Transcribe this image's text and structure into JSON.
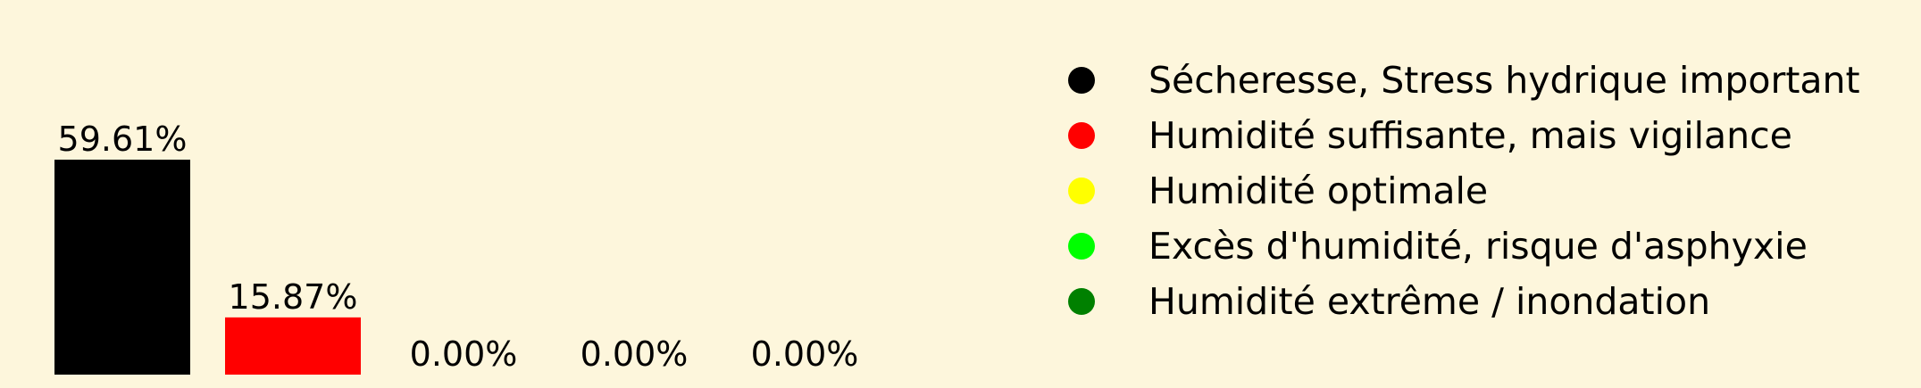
{
  "chart_data": {
    "type": "bar",
    "categories": [
      "Sécheresse, Stress hydrique important",
      "Humidité suffisante, mais vigilance",
      "Humidité optimale",
      "Excès d'humidité, risque d'asphyxie",
      "Humidité extrême / inondation"
    ],
    "values": [
      59.61,
      15.87,
      0.0,
      0.0,
      0.0
    ],
    "value_labels": [
      "59.61%",
      "15.87%",
      "0.00%",
      "0.00%",
      "0.00%"
    ],
    "colors": [
      "#000000",
      "#ff0000",
      "#ffff00",
      "#00ff00",
      "#008000"
    ],
    "ylim": [
      0,
      60
    ],
    "legend": {
      "placement": "right",
      "entries": [
        {
          "label": "Sécheresse, Stress hydrique important",
          "color": "#000000"
        },
        {
          "label": "Humidité suffisante, mais vigilance",
          "color": "#ff0000"
        },
        {
          "label": "Humidité optimale",
          "color": "#ffff00"
        },
        {
          "label": "Excès d'humidité, risque d'asphyxie",
          "color": "#00ff00"
        },
        {
          "label": "Humidité extrême / inondation",
          "color": "#008000"
        }
      ]
    },
    "grid": false,
    "background": "#fdf6dc"
  }
}
